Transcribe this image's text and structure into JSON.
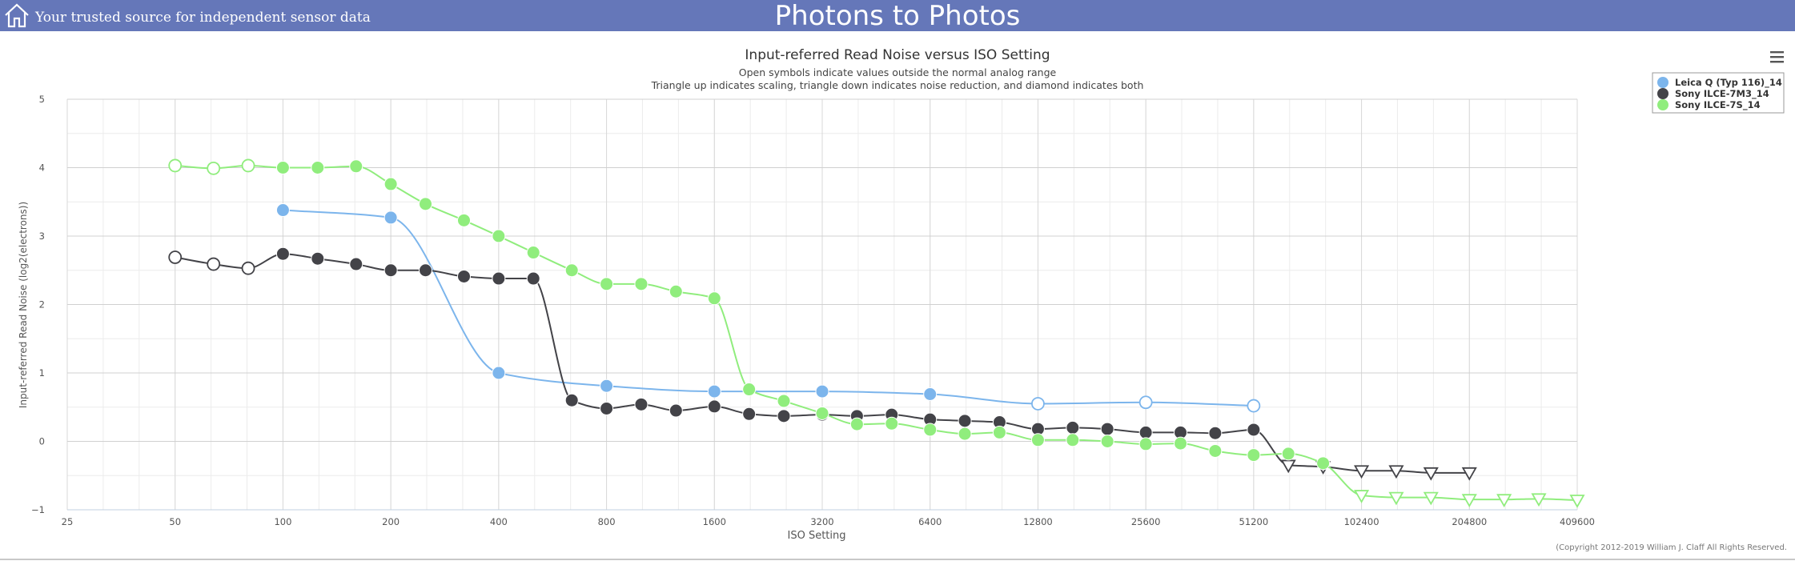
{
  "header": {
    "tagline": "Your trusted source for independent sensor data",
    "site_title": "Photons to Photos",
    "home_icon": "home-icon"
  },
  "menu_icon": "hamburger-menu-icon",
  "colors": {
    "header_bg": "#6577b9",
    "leica": "#7cb5ec",
    "sony_7m3": "#434348",
    "sony_7s": "#90ed7d"
  },
  "copyright": "(Copyright 2012-2019 William J. Claff All Rights Reserved.",
  "chart_data": {
    "type": "line",
    "title": "Input-referred Read Noise versus ISO Setting",
    "subtitle": [
      "Open symbols indicate values outside the normal analog range",
      "Triangle up indicates scaling, triangle down indicates noise reduction, and diamond indicates both"
    ],
    "xlabel": "ISO Setting",
    "ylabel": "Input-referred Read Noise (log2(electrons))",
    "x_scale": "log2",
    "xlim": [
      25,
      409600
    ],
    "ylim": [
      -1,
      5
    ],
    "x_ticks": [
      25,
      50,
      100,
      200,
      400,
      800,
      1600,
      3200,
      6400,
      12800,
      25600,
      51200,
      102400,
      204800,
      409600
    ],
    "y_ticks": [
      -1,
      0,
      1,
      2,
      3,
      4,
      5
    ],
    "grid": true,
    "legend_position": "top-right",
    "series": [
      {
        "name": "Leica Q (Typ 116)_14",
        "color": "#7cb5ec",
        "points": [
          {
            "x": 100,
            "y": 3.38,
            "marker": "filled-circle"
          },
          {
            "x": 200,
            "y": 3.27,
            "marker": "filled-circle"
          },
          {
            "x": 400,
            "y": 1.0,
            "marker": "filled-circle"
          },
          {
            "x": 800,
            "y": 0.81,
            "marker": "filled-circle"
          },
          {
            "x": 1600,
            "y": 0.73,
            "marker": "filled-circle"
          },
          {
            "x": 3200,
            "y": 0.73,
            "marker": "filled-circle"
          },
          {
            "x": 6400,
            "y": 0.69,
            "marker": "filled-circle"
          },
          {
            "x": 12800,
            "y": 0.55,
            "marker": "open-circle"
          },
          {
            "x": 25600,
            "y": 0.57,
            "marker": "open-circle"
          },
          {
            "x": 51200,
            "y": 0.52,
            "marker": "open-circle"
          }
        ]
      },
      {
        "name": "Sony ILCE-7M3_14",
        "color": "#434348",
        "points": [
          {
            "x": 50,
            "y": 2.69,
            "marker": "open-circle"
          },
          {
            "x": 64,
            "y": 2.59,
            "marker": "open-circle"
          },
          {
            "x": 80,
            "y": 2.53,
            "marker": "open-circle"
          },
          {
            "x": 100,
            "y": 2.74,
            "marker": "filled-circle"
          },
          {
            "x": 125,
            "y": 2.67,
            "marker": "filled-circle"
          },
          {
            "x": 160,
            "y": 2.59,
            "marker": "filled-circle"
          },
          {
            "x": 200,
            "y": 2.5,
            "marker": "filled-circle"
          },
          {
            "x": 250,
            "y": 2.5,
            "marker": "filled-circle"
          },
          {
            "x": 320,
            "y": 2.41,
            "marker": "filled-circle"
          },
          {
            "x": 400,
            "y": 2.38,
            "marker": "filled-circle"
          },
          {
            "x": 500,
            "y": 2.38,
            "marker": "filled-circle"
          },
          {
            "x": 640,
            "y": 0.6,
            "marker": "filled-circle"
          },
          {
            "x": 800,
            "y": 0.48,
            "marker": "filled-circle"
          },
          {
            "x": 1000,
            "y": 0.54,
            "marker": "filled-circle"
          },
          {
            "x": 1250,
            "y": 0.45,
            "marker": "filled-circle"
          },
          {
            "x": 1600,
            "y": 0.51,
            "marker": "filled-circle"
          },
          {
            "x": 2000,
            "y": 0.4,
            "marker": "filled-circle"
          },
          {
            "x": 2500,
            "y": 0.37,
            "marker": "filled-circle"
          },
          {
            "x": 3200,
            "y": 0.39,
            "marker": "filled-circle"
          },
          {
            "x": 4000,
            "y": 0.37,
            "marker": "filled-circle"
          },
          {
            "x": 5000,
            "y": 0.39,
            "marker": "filled-circle"
          },
          {
            "x": 6400,
            "y": 0.32,
            "marker": "filled-circle"
          },
          {
            "x": 8000,
            "y": 0.3,
            "marker": "filled-circle"
          },
          {
            "x": 10000,
            "y": 0.28,
            "marker": "filled-circle"
          },
          {
            "x": 12800,
            "y": 0.18,
            "marker": "filled-circle"
          },
          {
            "x": 16000,
            "y": 0.2,
            "marker": "filled-circle"
          },
          {
            "x": 20000,
            "y": 0.18,
            "marker": "filled-circle"
          },
          {
            "x": 25600,
            "y": 0.13,
            "marker": "filled-circle"
          },
          {
            "x": 32000,
            "y": 0.13,
            "marker": "filled-circle"
          },
          {
            "x": 40000,
            "y": 0.12,
            "marker": "filled-circle"
          },
          {
            "x": 51200,
            "y": 0.17,
            "marker": "filled-circle"
          },
          {
            "x": 64000,
            "y": -0.35,
            "marker": "open-triangle-down"
          },
          {
            "x": 80000,
            "y": -0.37,
            "marker": "open-triangle-down"
          },
          {
            "x": 102400,
            "y": -0.43,
            "marker": "open-triangle-down"
          },
          {
            "x": 128000,
            "y": -0.43,
            "marker": "open-triangle-down"
          },
          {
            "x": 160000,
            "y": -0.46,
            "marker": "open-triangle-down"
          },
          {
            "x": 204800,
            "y": -0.46,
            "marker": "open-triangle-down"
          }
        ]
      },
      {
        "name": "Sony ILCE-7S_14",
        "color": "#90ed7d",
        "points": [
          {
            "x": 50,
            "y": 4.03,
            "marker": "open-circle"
          },
          {
            "x": 64,
            "y": 3.99,
            "marker": "open-circle"
          },
          {
            "x": 80,
            "y": 4.03,
            "marker": "open-circle"
          },
          {
            "x": 100,
            "y": 4.0,
            "marker": "filled-circle"
          },
          {
            "x": 125,
            "y": 4.0,
            "marker": "filled-circle"
          },
          {
            "x": 160,
            "y": 4.02,
            "marker": "filled-circle"
          },
          {
            "x": 200,
            "y": 3.76,
            "marker": "filled-circle"
          },
          {
            "x": 250,
            "y": 3.47,
            "marker": "filled-circle"
          },
          {
            "x": 320,
            "y": 3.23,
            "marker": "filled-circle"
          },
          {
            "x": 400,
            "y": 3.0,
            "marker": "filled-circle"
          },
          {
            "x": 500,
            "y": 2.76,
            "marker": "filled-circle"
          },
          {
            "x": 640,
            "y": 2.5,
            "marker": "filled-circle"
          },
          {
            "x": 800,
            "y": 2.3,
            "marker": "filled-circle"
          },
          {
            "x": 1000,
            "y": 2.3,
            "marker": "filled-circle"
          },
          {
            "x": 1250,
            "y": 2.19,
            "marker": "filled-circle"
          },
          {
            "x": 1600,
            "y": 2.09,
            "marker": "filled-circle"
          },
          {
            "x": 2000,
            "y": 0.76,
            "marker": "filled-circle"
          },
          {
            "x": 2500,
            "y": 0.59,
            "marker": "filled-circle"
          },
          {
            "x": 3200,
            "y": 0.41,
            "marker": "filled-circle"
          },
          {
            "x": 4000,
            "y": 0.25,
            "marker": "filled-circle"
          },
          {
            "x": 5000,
            "y": 0.26,
            "marker": "filled-circle"
          },
          {
            "x": 6400,
            "y": 0.17,
            "marker": "filled-circle"
          },
          {
            "x": 8000,
            "y": 0.11,
            "marker": "filled-circle"
          },
          {
            "x": 10000,
            "y": 0.13,
            "marker": "filled-circle"
          },
          {
            "x": 12800,
            "y": 0.02,
            "marker": "filled-circle"
          },
          {
            "x": 16000,
            "y": 0.02,
            "marker": "filled-circle"
          },
          {
            "x": 20000,
            "y": 0.0,
            "marker": "filled-circle"
          },
          {
            "x": 25600,
            "y": -0.04,
            "marker": "filled-circle"
          },
          {
            "x": 32000,
            "y": -0.03,
            "marker": "filled-circle"
          },
          {
            "x": 40000,
            "y": -0.14,
            "marker": "filled-circle"
          },
          {
            "x": 51200,
            "y": -0.2,
            "marker": "filled-circle"
          },
          {
            "x": 64000,
            "y": -0.18,
            "marker": "filled-circle"
          },
          {
            "x": 80000,
            "y": -0.32,
            "marker": "filled-circle"
          },
          {
            "x": 102400,
            "y": -0.79,
            "marker": "open-triangle-down"
          },
          {
            "x": 128000,
            "y": -0.82,
            "marker": "open-triangle-down"
          },
          {
            "x": 160000,
            "y": -0.82,
            "marker": "open-triangle-down"
          },
          {
            "x": 204800,
            "y": -0.85,
            "marker": "open-triangle-down"
          },
          {
            "x": 256000,
            "y": -0.85,
            "marker": "open-triangle-down"
          },
          {
            "x": 320000,
            "y": -0.84,
            "marker": "open-triangle-down"
          },
          {
            "x": 409600,
            "y": -0.86,
            "marker": "open-triangle-down"
          }
        ]
      }
    ]
  }
}
